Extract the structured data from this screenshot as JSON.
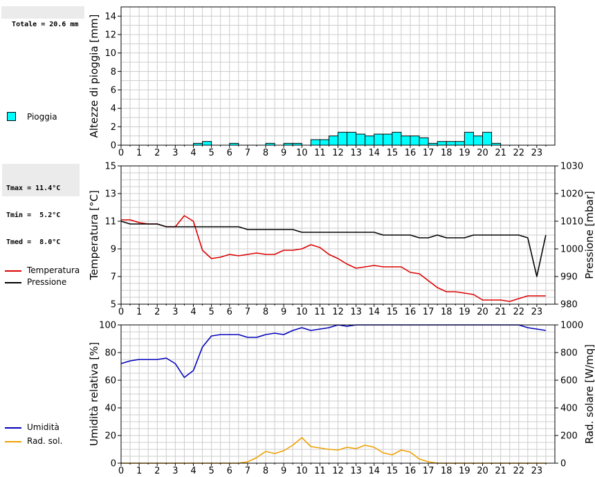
{
  "summary": {
    "totale": "Totale = 20.6 mm",
    "tmax": "Tmax = 11.4°C",
    "tmin": "Tmin =  5.2°C",
    "tmed": "Tmed =  8.0°C"
  },
  "legend": {
    "pioggia": "Pioggia",
    "temperatura": "Temperatura",
    "pressione": "Pressione",
    "umidita": "Umidità",
    "radsol": "Rad. sol."
  },
  "colors": {
    "rain_fill": "#00ffff",
    "temperature": "#dd0000",
    "pressure": "#000000",
    "humidity": "#0000bb",
    "solar": "#f0a000",
    "grid": "#cccccc"
  },
  "chart_data": [
    {
      "type": "bar",
      "ylabel": "Altezze di pioggia [mm]",
      "ylim": [
        0,
        15
      ],
      "yticks": [
        0,
        2,
        4,
        6,
        8,
        10,
        12,
        14
      ],
      "xlim": [
        0,
        24
      ],
      "xticks": [
        "0",
        "1",
        "2",
        "3",
        "4",
        "5",
        "6",
        "7",
        "8",
        "9",
        "10",
        "11",
        "12",
        "13",
        "14",
        "15",
        "16",
        "17",
        "18",
        "19",
        "20",
        "21",
        "22",
        "23"
      ],
      "grid": true,
      "bin_width_hours": 0.5,
      "series": [
        {
          "name": "Pioggia",
          "x": [
            4,
            4.5,
            6,
            8,
            9,
            9.5,
            10.5,
            11,
            11.5,
            12,
            12.5,
            13,
            13.5,
            14,
            14.5,
            15,
            15.5,
            16,
            16.5,
            17,
            17.5,
            18,
            18.5,
            19,
            19.5,
            20,
            20.5
          ],
          "values": [
            0.2,
            0.4,
            0.2,
            0.2,
            0.2,
            0.2,
            0.6,
            0.6,
            1.0,
            1.4,
            1.4,
            1.2,
            1.0,
            1.2,
            1.2,
            1.4,
            1.0,
            1.0,
            0.8,
            0.2,
            0.4,
            0.4,
            0.4,
            1.4,
            1.0,
            1.4,
            0.2
          ]
        }
      ]
    },
    {
      "type": "line",
      "ylabel": "Temperatura [°C]",
      "y2label": "Pressione [mbar]",
      "ylim": [
        5,
        15
      ],
      "yticks": [
        5,
        7,
        9,
        11,
        13,
        15
      ],
      "y2lim": [
        980,
        1030
      ],
      "y2ticks": [
        980,
        990,
        1000,
        1010,
        1020,
        1030
      ],
      "xlim": [
        0,
        24
      ],
      "xticks": [
        "0",
        "1",
        "2",
        "3",
        "4",
        "5",
        "6",
        "7",
        "8",
        "9",
        "10",
        "11",
        "12",
        "13",
        "14",
        "15",
        "16",
        "17",
        "18",
        "19",
        "20",
        "21",
        "22",
        "23"
      ],
      "grid": true,
      "series": [
        {
          "name": "Temperatura",
          "axis": "left",
          "x": [
            0,
            0.5,
            1,
            1.5,
            2,
            2.5,
            3,
            3.5,
            4,
            4.5,
            5,
            5.5,
            6,
            6.5,
            7,
            7.5,
            8,
            8.5,
            9,
            9.5,
            10,
            10.5,
            11,
            11.5,
            12,
            12.5,
            13,
            13.5,
            14,
            14.5,
            15,
            15.5,
            16,
            16.5,
            17,
            17.5,
            18,
            18.5,
            19,
            19.5,
            20,
            20.5,
            21,
            21.5,
            22,
            22.5,
            23,
            23.5
          ],
          "values": [
            11.1,
            11.1,
            10.9,
            10.8,
            10.8,
            10.6,
            10.6,
            11.4,
            11.0,
            8.9,
            8.3,
            8.4,
            8.6,
            8.5,
            8.6,
            8.7,
            8.6,
            8.6,
            8.9,
            8.9,
            9.0,
            9.3,
            9.1,
            8.6,
            8.3,
            7.9,
            7.6,
            7.7,
            7.8,
            7.7,
            7.7,
            7.7,
            7.3,
            7.2,
            6.7,
            6.2,
            5.9,
            5.9,
            5.8,
            5.7,
            5.3,
            5.3,
            5.3,
            5.2,
            5.4,
            5.6,
            5.6,
            5.6
          ]
        },
        {
          "name": "Pressione",
          "axis": "right",
          "x": [
            0,
            0.5,
            1,
            1.5,
            2,
            2.5,
            3,
            3.5,
            4,
            4.5,
            5,
            5.5,
            6,
            6.5,
            7,
            7.5,
            8,
            8.5,
            9,
            9.5,
            10,
            10.5,
            11,
            11.5,
            12,
            12.5,
            13,
            13.5,
            14,
            14.5,
            15,
            15.5,
            16,
            16.5,
            17,
            17.5,
            18,
            18.5,
            19,
            19.5,
            20,
            20.5,
            21,
            21.5,
            22,
            22.5,
            23,
            23.5
          ],
          "values": [
            1010,
            1009,
            1009,
            1009,
            1009,
            1008,
            1008,
            1008,
            1008,
            1008,
            1008,
            1008,
            1008,
            1008,
            1007,
            1007,
            1007,
            1007,
            1007,
            1007,
            1006,
            1006,
            1006,
            1006,
            1006,
            1006,
            1006,
            1006,
            1006,
            1005,
            1005,
            1005,
            1005,
            1004,
            1004,
            1005,
            1004,
            1004,
            1004,
            1005,
            1005,
            1005,
            1005,
            1005,
            1005,
            1004,
            990,
            1005
          ]
        }
      ]
    },
    {
      "type": "line",
      "ylabel": "Umidità relativa [%]",
      "y2label": "Rad. solare [W/mq]",
      "ylim": [
        0,
        100
      ],
      "yticks": [
        0,
        20,
        40,
        60,
        80,
        100
      ],
      "y2lim": [
        0,
        1000
      ],
      "y2ticks": [
        0,
        200,
        400,
        600,
        800,
        1000
      ],
      "xlim": [
        0,
        24
      ],
      "xticks": [
        "0",
        "1",
        "2",
        "3",
        "4",
        "5",
        "6",
        "7",
        "8",
        "9",
        "10",
        "11",
        "12",
        "13",
        "14",
        "15",
        "16",
        "17",
        "18",
        "19",
        "20",
        "21",
        "22",
        "23"
      ],
      "grid": true,
      "series": [
        {
          "name": "Umidità",
          "axis": "left",
          "x": [
            0,
            0.5,
            1,
            1.5,
            2,
            2.5,
            3,
            3.5,
            4,
            4.5,
            5,
            5.5,
            6,
            6.5,
            7,
            7.5,
            8,
            8.5,
            9,
            9.5,
            10,
            10.5,
            11,
            11.5,
            12,
            12.5,
            13,
            13.5,
            14,
            14.5,
            15,
            15.5,
            16,
            16.5,
            17,
            17.5,
            18,
            18.5,
            19,
            19.5,
            20,
            20.5,
            21,
            21.5,
            22,
            22.5,
            23,
            23.5
          ],
          "values": [
            72,
            74,
            75,
            75,
            75,
            76,
            72,
            62,
            67,
            84,
            92,
            93,
            93,
            93,
            91,
            91,
            93,
            94,
            93,
            96,
            98,
            96,
            97,
            98,
            100,
            99,
            100,
            100,
            100,
            100,
            100,
            100,
            100,
            100,
            100,
            100,
            100,
            100,
            100,
            100,
            100,
            100,
            100,
            100,
            100,
            98,
            97,
            96
          ]
        },
        {
          "name": "Rad. sol.",
          "axis": "right",
          "x": [
            0,
            0.5,
            1,
            1.5,
            2,
            2.5,
            3,
            3.5,
            4,
            4.5,
            5,
            5.5,
            6,
            6.5,
            7,
            7.5,
            8,
            8.5,
            9,
            9.5,
            10,
            10.5,
            11,
            11.5,
            12,
            12.5,
            13,
            13.5,
            14,
            14.5,
            15,
            15.5,
            16,
            16.5,
            17,
            17.5,
            18,
            18.5,
            19,
            19.5,
            20,
            20.5,
            21,
            21.5,
            22,
            22.5,
            23,
            23.5
          ],
          "values": [
            0,
            0,
            0,
            0,
            0,
            0,
            0,
            0,
            0,
            0,
            0,
            0,
            0,
            0,
            10,
            40,
            85,
            70,
            90,
            130,
            185,
            120,
            110,
            100,
            95,
            115,
            105,
            130,
            115,
            75,
            60,
            95,
            80,
            30,
            10,
            0,
            0,
            0,
            0,
            0,
            0,
            0,
            0,
            0,
            0,
            0,
            0,
            0
          ]
        }
      ]
    }
  ]
}
